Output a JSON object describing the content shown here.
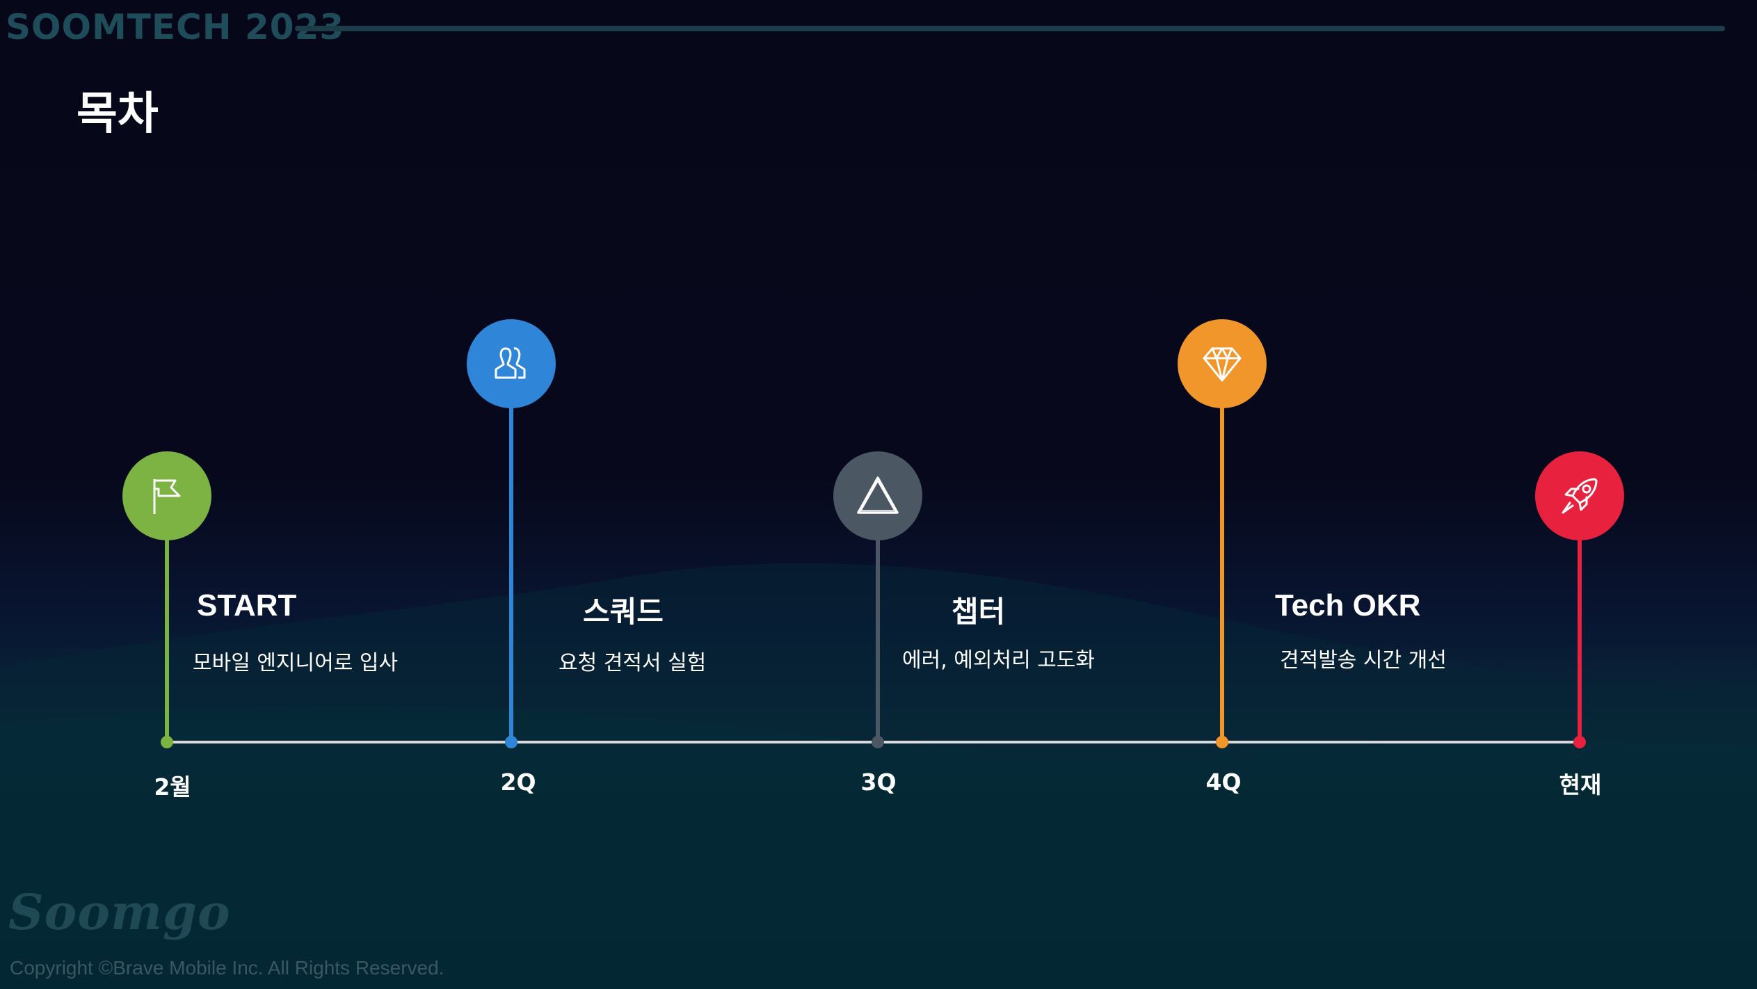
{
  "header": {
    "brand": "SOOMTECH 2023",
    "title": "목차"
  },
  "colors": {
    "green": "#7cb342",
    "blue": "#2f86d9",
    "gray": "#4b5763",
    "orange": "#f0962a",
    "red": "#e8213e"
  },
  "milestones": [
    {
      "title": "START",
      "desc": "모바일 엔지니어로 입사",
      "label": "2월",
      "icon": "flag-icon"
    },
    {
      "title": "스쿼드",
      "desc": "요청 견적서 실험",
      "label": "2Q",
      "icon": "users-icon"
    },
    {
      "title": "챕터",
      "desc": "에러, 예외처리 고도화",
      "label": "3Q",
      "icon": "warning-triangle-icon"
    },
    {
      "title": "Tech OKR",
      "desc": "견적발송 시간 개선",
      "label": "4Q",
      "icon": "diamond-icon"
    },
    {
      "title": "",
      "desc": "",
      "label": "현재",
      "icon": "rocket-icon"
    }
  ],
  "footer": {
    "logo": "Soomgo",
    "copyright": "Copyright ©Brave Mobile Inc. All Rights Reserved."
  }
}
